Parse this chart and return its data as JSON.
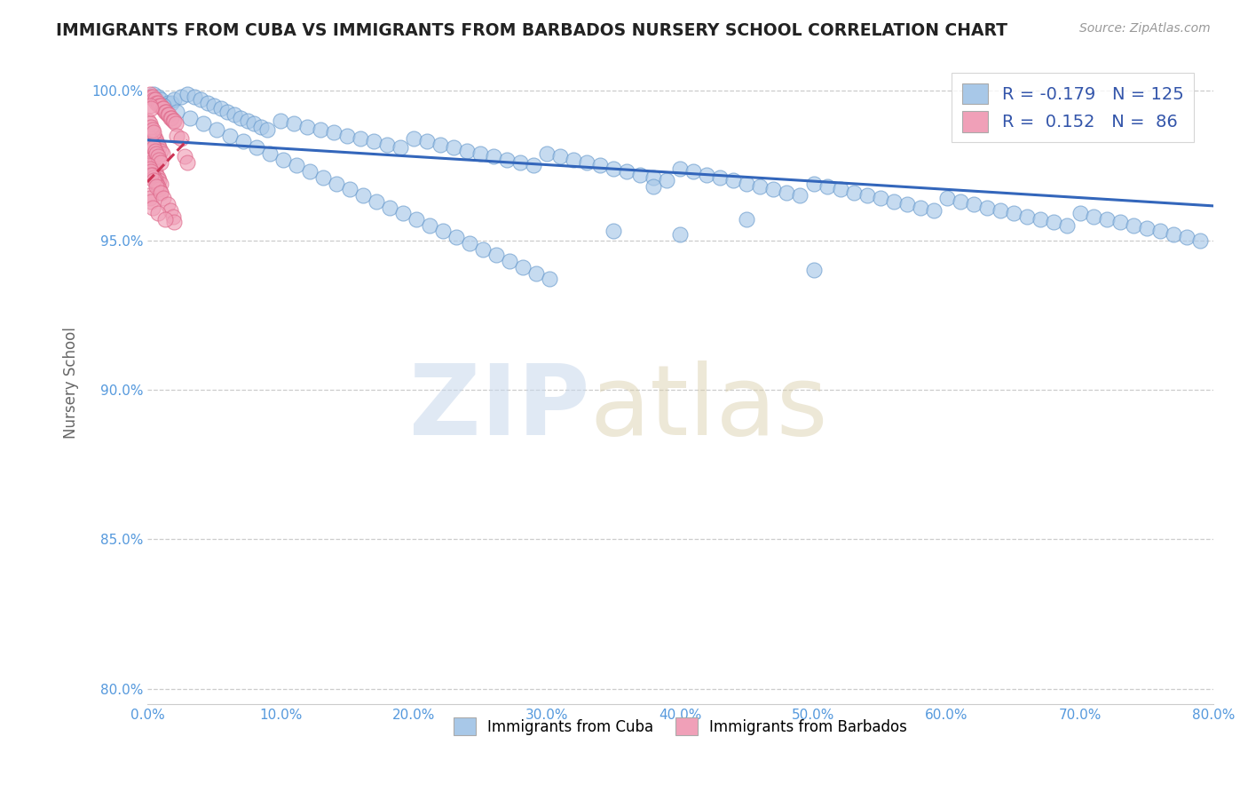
{
  "title": "IMMIGRANTS FROM CUBA VS IMMIGRANTS FROM BARBADOS NURSERY SCHOOL CORRELATION CHART",
  "source": "Source: ZipAtlas.com",
  "ylabel": "Nursery School",
  "xlim": [
    0.0,
    0.8
  ],
  "ylim": [
    0.795,
    1.01
  ],
  "xticks": [
    0.0,
    0.1,
    0.2,
    0.3,
    0.4,
    0.5,
    0.6,
    0.7,
    0.8
  ],
  "xticklabels": [
    "0.0%",
    "10.0%",
    "20.0%",
    "30.0%",
    "40.0%",
    "50.0%",
    "60.0%",
    "70.0%",
    "80.0%"
  ],
  "yticks": [
    0.8,
    0.85,
    0.9,
    0.95,
    1.0
  ],
  "yticklabels": [
    "80.0%",
    "85.0%",
    "90.0%",
    "95.0%",
    "100.0%"
  ],
  "blue_color": "#A8C8E8",
  "pink_color": "#F0A0B8",
  "blue_edge_color": "#6699CC",
  "pink_edge_color": "#DD6688",
  "blue_line_color": "#3366BB",
  "pink_line_color": "#CC3355",
  "grid_color": "#CCCCCC",
  "legend_r1": "-0.179",
  "legend_n1": "125",
  "legend_r2": "0.152",
  "legend_n2": "86",
  "label_cuba": "Immigrants from Cuba",
  "label_barbados": "Immigrants from Barbados",
  "blue_trend_x": [
    0.0,
    0.8
  ],
  "blue_trend_y": [
    0.9835,
    0.9615
  ],
  "pink_trend_x": [
    0.0,
    0.03
  ],
  "pink_trend_y": [
    0.9695,
    0.9835
  ],
  "cuba_x": [
    0.005,
    0.008,
    0.01,
    0.015,
    0.018,
    0.02,
    0.025,
    0.03,
    0.035,
    0.04,
    0.045,
    0.05,
    0.055,
    0.06,
    0.065,
    0.07,
    0.075,
    0.08,
    0.085,
    0.09,
    0.1,
    0.11,
    0.12,
    0.13,
    0.14,
    0.15,
    0.16,
    0.17,
    0.18,
    0.19,
    0.2,
    0.21,
    0.22,
    0.23,
    0.24,
    0.25,
    0.26,
    0.27,
    0.28,
    0.29,
    0.3,
    0.31,
    0.32,
    0.33,
    0.34,
    0.35,
    0.36,
    0.37,
    0.38,
    0.39,
    0.4,
    0.41,
    0.42,
    0.43,
    0.44,
    0.45,
    0.46,
    0.47,
    0.48,
    0.49,
    0.5,
    0.51,
    0.52,
    0.53,
    0.54,
    0.55,
    0.56,
    0.57,
    0.58,
    0.59,
    0.6,
    0.61,
    0.62,
    0.63,
    0.64,
    0.65,
    0.66,
    0.67,
    0.68,
    0.69,
    0.7,
    0.71,
    0.72,
    0.73,
    0.74,
    0.75,
    0.76,
    0.77,
    0.78,
    0.79,
    0.012,
    0.022,
    0.032,
    0.042,
    0.052,
    0.062,
    0.072,
    0.082,
    0.092,
    0.102,
    0.112,
    0.122,
    0.132,
    0.142,
    0.152,
    0.162,
    0.172,
    0.182,
    0.192,
    0.202,
    0.212,
    0.222,
    0.232,
    0.242,
    0.252,
    0.262,
    0.272,
    0.282,
    0.292,
    0.302,
    0.35,
    0.38,
    0.4,
    0.45,
    0.5
  ],
  "cuba_y": [
    0.999,
    0.998,
    0.997,
    0.996,
    0.996,
    0.997,
    0.998,
    0.999,
    0.998,
    0.997,
    0.996,
    0.995,
    0.994,
    0.993,
    0.992,
    0.991,
    0.99,
    0.989,
    0.988,
    0.987,
    0.99,
    0.989,
    0.988,
    0.987,
    0.986,
    0.985,
    0.984,
    0.983,
    0.982,
    0.981,
    0.984,
    0.983,
    0.982,
    0.981,
    0.98,
    0.979,
    0.978,
    0.977,
    0.976,
    0.975,
    0.979,
    0.978,
    0.977,
    0.976,
    0.975,
    0.974,
    0.973,
    0.972,
    0.971,
    0.97,
    0.974,
    0.973,
    0.972,
    0.971,
    0.97,
    0.969,
    0.968,
    0.967,
    0.966,
    0.965,
    0.969,
    0.968,
    0.967,
    0.966,
    0.965,
    0.964,
    0.963,
    0.962,
    0.961,
    0.96,
    0.964,
    0.963,
    0.962,
    0.961,
    0.96,
    0.959,
    0.958,
    0.957,
    0.956,
    0.955,
    0.959,
    0.958,
    0.957,
    0.956,
    0.955,
    0.954,
    0.953,
    0.952,
    0.951,
    0.95,
    0.995,
    0.993,
    0.991,
    0.989,
    0.987,
    0.985,
    0.983,
    0.981,
    0.979,
    0.977,
    0.975,
    0.973,
    0.971,
    0.969,
    0.967,
    0.965,
    0.963,
    0.961,
    0.959,
    0.957,
    0.955,
    0.953,
    0.951,
    0.949,
    0.947,
    0.945,
    0.943,
    0.941,
    0.939,
    0.937,
    0.953,
    0.968,
    0.952,
    0.957,
    0.94
  ],
  "barbados_x": [
    0.002,
    0.003,
    0.004,
    0.005,
    0.006,
    0.007,
    0.008,
    0.009,
    0.01,
    0.011,
    0.012,
    0.013,
    0.014,
    0.015,
    0.016,
    0.017,
    0.018,
    0.019,
    0.02,
    0.021,
    0.002,
    0.003,
    0.004,
    0.005,
    0.006,
    0.007,
    0.008,
    0.009,
    0.01,
    0.011,
    0.001,
    0.002,
    0.003,
    0.004,
    0.005,
    0.006,
    0.007,
    0.008,
    0.009,
    0.01,
    0.001,
    0.002,
    0.003,
    0.004,
    0.005,
    0.006,
    0.007,
    0.008,
    0.009,
    0.01,
    0.001,
    0.002,
    0.003,
    0.004,
    0.005,
    0.006,
    0.007,
    0.008,
    0.009,
    0.01,
    0.001,
    0.002,
    0.003,
    0.001,
    0.002,
    0.003,
    0.004,
    0.005,
    0.002,
    0.003,
    0.022,
    0.025,
    0.028,
    0.03,
    0.003,
    0.005,
    0.007,
    0.01,
    0.012,
    0.015,
    0.017,
    0.019,
    0.02,
    0.004,
    0.008,
    0.013
  ],
  "barbados_y": [
    0.999,
    0.998,
    0.998,
    0.997,
    0.997,
    0.996,
    0.996,
    0.995,
    0.995,
    0.994,
    0.994,
    0.993,
    0.993,
    0.992,
    0.992,
    0.991,
    0.991,
    0.99,
    0.99,
    0.989,
    0.988,
    0.987,
    0.986,
    0.985,
    0.984,
    0.983,
    0.982,
    0.981,
    0.98,
    0.979,
    0.978,
    0.977,
    0.976,
    0.975,
    0.974,
    0.973,
    0.972,
    0.971,
    0.97,
    0.969,
    0.985,
    0.984,
    0.983,
    0.982,
    0.981,
    0.98,
    0.979,
    0.978,
    0.977,
    0.976,
    0.975,
    0.974,
    0.973,
    0.972,
    0.971,
    0.97,
    0.969,
    0.968,
    0.967,
    0.966,
    0.965,
    0.964,
    0.963,
    0.99,
    0.989,
    0.988,
    0.987,
    0.986,
    0.995,
    0.994,
    0.985,
    0.984,
    0.978,
    0.976,
    0.972,
    0.97,
    0.968,
    0.966,
    0.964,
    0.962,
    0.96,
    0.958,
    0.956,
    0.961,
    0.959,
    0.957
  ]
}
